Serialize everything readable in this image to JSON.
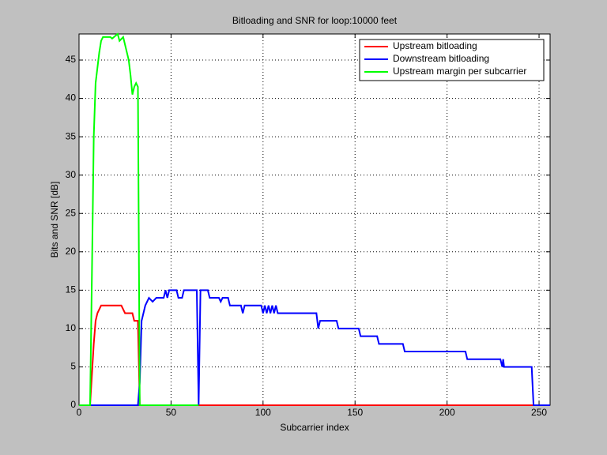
{
  "chart_data": {
    "type": "line",
    "title": "Bitloading and SNR for loop:10000 feet",
    "xlabel": "Subcarrier index",
    "ylabel": "Bits and SNR [dB]",
    "xlim": [
      0,
      256
    ],
    "xticks": [
      0,
      50,
      100,
      150,
      200,
      250
    ],
    "ylim": [
      0,
      48.4
    ],
    "yticks": [
      0,
      5,
      10,
      15,
      20,
      25,
      30,
      35,
      40,
      45
    ],
    "grid": true,
    "legend": "upper right",
    "series": [
      {
        "name": "Upstream bitloading",
        "color": "#ff0000",
        "x": [
          0,
          6,
          7,
          8,
          9,
          10,
          11,
          12,
          23,
          25,
          29,
          30,
          32,
          32.5,
          33,
          256
        ],
        "values": [
          0,
          0,
          4,
          8,
          11,
          12,
          12.5,
          13,
          13,
          12,
          12,
          11,
          11,
          5.5,
          0,
          0
        ]
      },
      {
        "name": "Downstream bitloading",
        "color": "#0000ff",
        "x": [
          0,
          32,
          33,
          34,
          35,
          36,
          38,
          40,
          42,
          46,
          47,
          48,
          49,
          53,
          54,
          56,
          57,
          64,
          65,
          66,
          70,
          71,
          76,
          77,
          78,
          81,
          82,
          88,
          89,
          90,
          99,
          100,
          101,
          102,
          103,
          104,
          105,
          106,
          107,
          108,
          129,
          130,
          131,
          140,
          141,
          152,
          153,
          162,
          163,
          176,
          177,
          210,
          211,
          229,
          230,
          230.5,
          231,
          246,
          247,
          256
        ],
        "values": [
          0,
          0,
          3,
          11,
          12,
          13,
          14,
          13.5,
          14,
          14,
          15,
          14,
          15,
          15,
          14,
          14,
          15,
          15,
          0,
          15,
          15,
          14,
          14,
          13.5,
          14,
          14,
          13,
          13,
          12,
          13,
          13,
          12,
          13,
          12,
          13,
          12,
          13,
          12,
          13,
          12,
          12,
          10,
          11,
          11,
          10,
          10,
          9,
          9,
          8,
          8,
          7,
          7,
          6,
          6,
          5,
          6,
          5,
          5,
          0,
          0
        ]
      },
      {
        "name": "Upstream margin per subcarrier",
        "color": "#00ff00",
        "x": [
          0,
          6,
          7,
          8,
          9,
          10,
          11,
          12,
          13,
          17,
          18,
          21,
          22,
          24,
          25,
          26,
          27,
          28,
          29,
          30,
          31,
          32,
          33,
          65
        ],
        "values": [
          0,
          0,
          17,
          35,
          42,
          44,
          46,
          47.5,
          48,
          48,
          47.8,
          48.4,
          47.5,
          48,
          47,
          46,
          45,
          43,
          40.5,
          41.5,
          42,
          41.5,
          0,
          0
        ]
      }
    ]
  }
}
